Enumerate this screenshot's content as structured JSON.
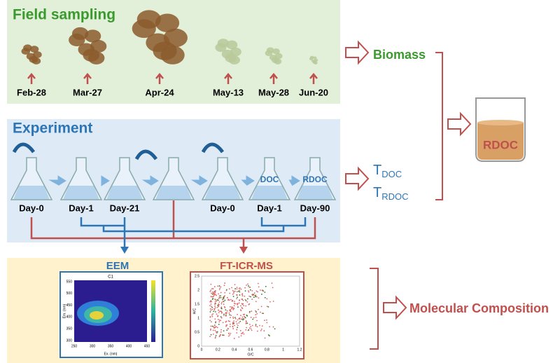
{
  "field_sampling": {
    "title": "Field sampling",
    "dates": [
      "Feb-28",
      "Mar-27",
      "Apr-24",
      "May-13",
      "May-28",
      "Jun-20"
    ]
  },
  "biomass": "Biomass",
  "experiment": {
    "title": "Experiment",
    "days": [
      "Day-0",
      "Day-1",
      "Day-21",
      "Day-0",
      "Day-1",
      "Day-90"
    ],
    "flask_labels": [
      "DOC",
      "RDOC"
    ]
  },
  "outputs": [
    {
      "main": "T",
      "sub": "DOC"
    },
    {
      "main": "T",
      "sub": "RDOC"
    }
  ],
  "beaker": "RDOC",
  "eem": {
    "title": "EEM",
    "plot_title": "C1",
    "x_label": "Ex. (nm)",
    "y_label": "Em. (nm)",
    "xticks": [
      250,
      300,
      350,
      400,
      450
    ],
    "yticks": [
      300,
      350,
      400,
      450,
      500,
      550
    ]
  },
  "fticr": {
    "title": "FT-ICR-MS",
    "x_label": "O/C",
    "y_label": "H/C",
    "xticks": [
      0,
      0.2,
      0.4,
      0.6,
      0.8,
      1,
      1.2
    ],
    "yticks": [
      0,
      0.5,
      1,
      1.5,
      2,
      2.5
    ]
  },
  "result": "Molecular Composition"
}
